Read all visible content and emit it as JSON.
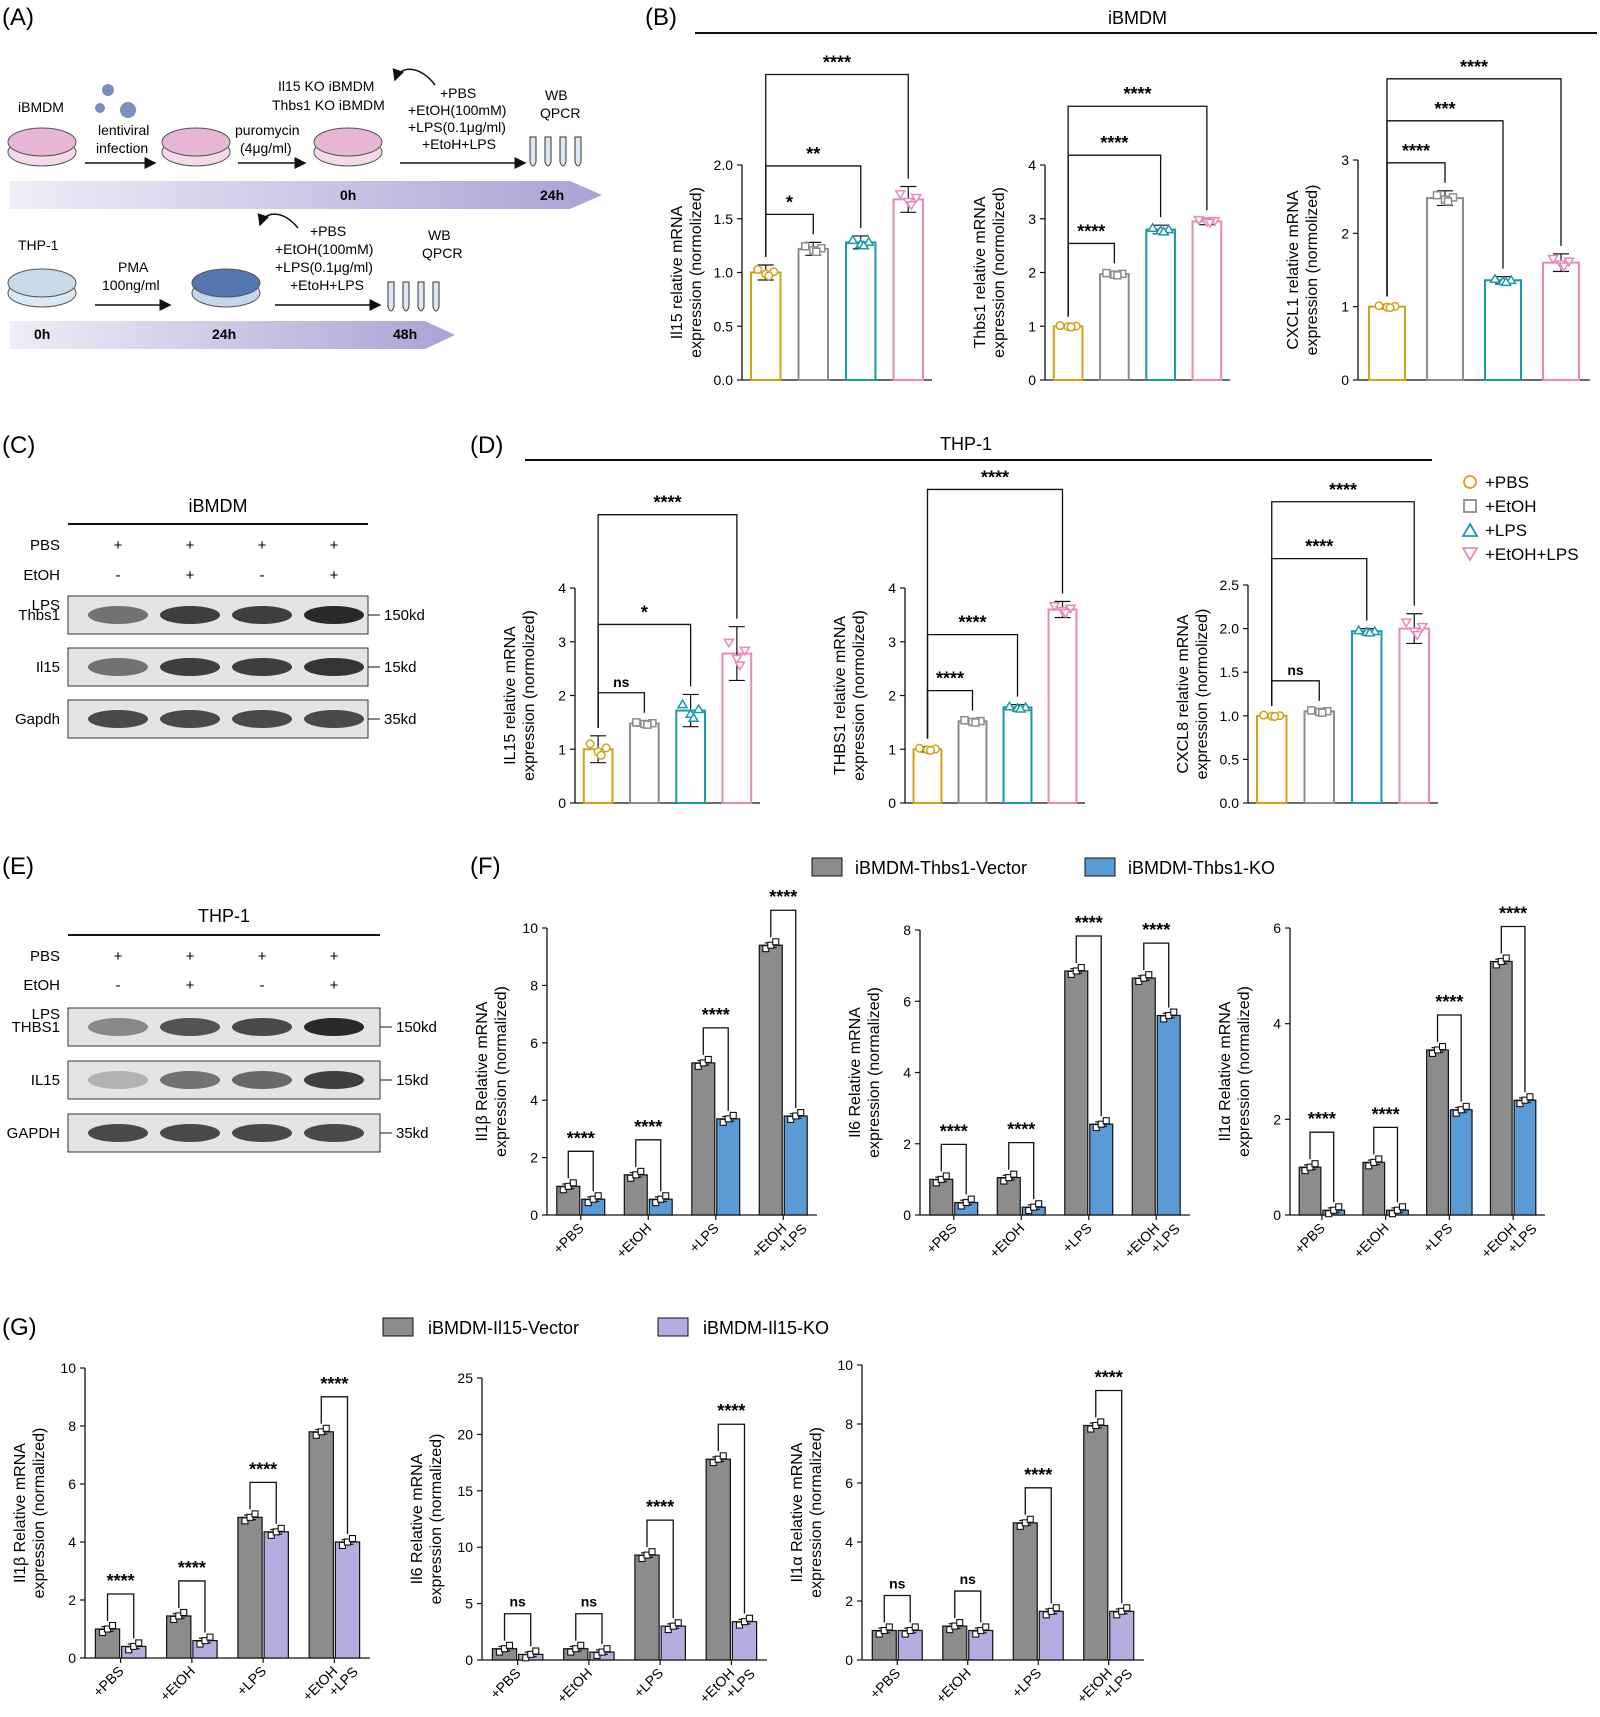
{
  "colors": {
    "pbs": "#d4a017",
    "etoh": "#8c8c8c",
    "lps": "#1a9aa6",
    "etohlps": "#e889b8",
    "vector": "#8c8c8c",
    "thbs1ko": "#5b9bd5",
    "il15ko": "#b4aee0",
    "arrow": "#b8b3d9"
  },
  "panels": {
    "A": "(A)",
    "B": "(B)",
    "C": "(C)",
    "D": "(D)",
    "E": "(E)",
    "F": "(F)",
    "G": "(G)"
  },
  "schematic": {
    "cell_ibmdm": "iBMDM",
    "lentiviral": "lentiviral",
    "infection": "infection",
    "ko_line1": "Il15 KO iBMDM",
    "ko_line2": "Thbs1 KO iBMDM",
    "puro1": "puromycin",
    "puro2": "(4μg/ml)",
    "treat1": [
      "+PBS",
      "+EtOH(100mM)",
      "+LPS(0.1μg/ml)",
      "+EtoH+LPS"
    ],
    "wb": "WB",
    "qpcr": "QPCR",
    "t0": "0h",
    "t24": "24h",
    "cell_thp1": "THP-1",
    "pma1": "PMA",
    "pma2": "100ng/ml",
    "treat2": [
      "+PBS",
      "+EtOH(100mM)",
      "+LPS(0.1μg/ml)",
      "+EtoH+LPS"
    ],
    "wb2": "WB",
    "qpcr2": "QPCR",
    "t0b": "0h",
    "t24b": "24h",
    "t48": "48h"
  },
  "headers": {
    "B": "iBMDM",
    "D": "THP-1"
  },
  "legend_D": [
    "+PBS",
    "+EtOH",
    "+LPS",
    "+EtOH+LPS"
  ],
  "legend_F": [
    "iBMDM-Thbs1-Vector",
    "iBMDM-Thbs1-KO"
  ],
  "legend_G": [
    "iBMDM-Il15-Vector",
    "iBMDM-Il15-KO"
  ],
  "blot_C": {
    "title": "iBMDM",
    "rows": [
      {
        "label": "PBS",
        "marks": [
          "+",
          "+",
          "+",
          "+"
        ]
      },
      {
        "label": "EtOH",
        "marks": [
          "-",
          "+",
          "-",
          "+"
        ]
      },
      {
        "label": "LPS",
        "marks": [
          "-",
          "-",
          "+",
          "+"
        ]
      }
    ],
    "bands": [
      {
        "label": "Thbs1",
        "size": "150kd",
        "intensity": [
          0.55,
          0.8,
          0.8,
          0.9
        ]
      },
      {
        "label": "Il15",
        "size": "15kd",
        "intensity": [
          0.55,
          0.8,
          0.8,
          0.85
        ]
      },
      {
        "label": "Gapdh",
        "size": "35kd",
        "intensity": [
          0.75,
          0.75,
          0.75,
          0.75
        ]
      }
    ]
  },
  "blot_E": {
    "title": "THP-1",
    "rows": [
      {
        "label": "PBS",
        "marks": [
          "+",
          "+",
          "+",
          "+"
        ]
      },
      {
        "label": "EtOH",
        "marks": [
          "-",
          "+",
          "-",
          "+"
        ]
      },
      {
        "label": "LPS",
        "marks": [
          "-",
          "-",
          "+",
          "+"
        ]
      }
    ],
    "bands": [
      {
        "label": "THBS1",
        "size": "150kd",
        "intensity": [
          0.45,
          0.7,
          0.75,
          0.9
        ]
      },
      {
        "label": "IL15",
        "size": "15kd",
        "intensity": [
          0.25,
          0.55,
          0.6,
          0.8
        ]
      },
      {
        "label": "GAPDH",
        "size": "35kd",
        "intensity": [
          0.75,
          0.75,
          0.75,
          0.75
        ]
      }
    ]
  },
  "chart_data": [
    {
      "id": "B1",
      "type": "bar",
      "ylabel": [
        "Il15 relative mRNA",
        "expression (normolized)"
      ],
      "ylim": [
        0,
        2.0
      ],
      "yticks": [
        "0.0",
        "0.5",
        "1.0",
        "1.5",
        "2.0"
      ],
      "values": [
        1.0,
        1.22,
        1.28,
        1.68
      ],
      "err": [
        0.07,
        0.06,
        0.06,
        0.12
      ],
      "sig": [
        {
          "i": 1,
          "t": "*"
        },
        {
          "i": 2,
          "t": "**"
        },
        {
          "i": 3,
          "t": "****"
        }
      ]
    },
    {
      "id": "B2",
      "type": "bar",
      "ylabel": [
        "Thbs1 relative mRNA",
        "expression (normolized)"
      ],
      "ylim": [
        0,
        4
      ],
      "yticks": [
        "0",
        "1",
        "2",
        "3",
        "4"
      ],
      "values": [
        1.0,
        1.97,
        2.8,
        2.95
      ],
      "err": [
        0.03,
        0.05,
        0.08,
        0.06
      ],
      "sig": [
        {
          "i": 1,
          "t": "****"
        },
        {
          "i": 2,
          "t": "****"
        },
        {
          "i": 3,
          "t": "****"
        }
      ]
    },
    {
      "id": "B3",
      "type": "bar",
      "ylabel": [
        "CXCL1 relative mRNA",
        "expression (normolized)"
      ],
      "ylim": [
        0,
        3
      ],
      "yticks": [
        "0",
        "1",
        "2",
        "3"
      ],
      "values": [
        1.0,
        2.48,
        1.36,
        1.6
      ],
      "err": [
        0.03,
        0.1,
        0.05,
        0.12
      ],
      "sig": [
        {
          "i": 1,
          "t": "****"
        },
        {
          "i": 2,
          "t": "***"
        },
        {
          "i": 3,
          "t": "****"
        }
      ]
    },
    {
      "id": "D1",
      "type": "bar",
      "ylabel": [
        "IL15 relative mRNA",
        "expression (normolized)"
      ],
      "ylim": [
        0,
        4
      ],
      "yticks": [
        "0",
        "1",
        "2",
        "3",
        "4"
      ],
      "values": [
        1.0,
        1.48,
        1.72,
        2.78
      ],
      "err": [
        0.25,
        0.05,
        0.3,
        0.5
      ],
      "sig": [
        {
          "i": 1,
          "t": "ns"
        },
        {
          "i": 2,
          "t": "*"
        },
        {
          "i": 3,
          "t": "****"
        }
      ]
    },
    {
      "id": "D2",
      "type": "bar",
      "ylabel": [
        "THBS1 relative mRNA",
        "expression (normolized)"
      ],
      "ylim": [
        0,
        4
      ],
      "yticks": [
        "0",
        "1",
        "2",
        "3",
        "4"
      ],
      "values": [
        1.0,
        1.52,
        1.78,
        3.6
      ],
      "err": [
        0.05,
        0.05,
        0.05,
        0.15
      ],
      "sig": [
        {
          "i": 1,
          "t": "****"
        },
        {
          "i": 2,
          "t": "****"
        },
        {
          "i": 3,
          "t": "****"
        }
      ]
    },
    {
      "id": "D3",
      "type": "bar",
      "ylabel": [
        "CXCL8 relative mRNA",
        "expression (normolized)"
      ],
      "ylim": [
        0,
        2.5
      ],
      "yticks": [
        "0.0",
        "0.5",
        "1.0",
        "1.5",
        "2.0",
        "2.5"
      ],
      "values": [
        1.0,
        1.05,
        1.97,
        2.0
      ],
      "err": [
        0.02,
        0.03,
        0.03,
        0.17
      ],
      "sig": [
        {
          "i": 1,
          "t": "ns"
        },
        {
          "i": 2,
          "t": "****"
        },
        {
          "i": 3,
          "t": "****"
        }
      ]
    },
    {
      "id": "F1",
      "type": "bar",
      "ylabel": [
        "Il1β Relative mRNA",
        "expression (normalized)"
      ],
      "ylim": [
        0,
        10
      ],
      "yticks": [
        "0",
        "2",
        "4",
        "6",
        "8",
        "10"
      ],
      "categories": [
        "+PBS",
        "+EtOH",
        "+LPS",
        "+EtOH\n+LPS"
      ],
      "series": [
        {
          "name": "iBMDM-Thbs1-Vector",
          "values": [
            1.0,
            1.4,
            5.3,
            9.4
          ]
        },
        {
          "name": "iBMDM-Thbs1-KO",
          "values": [
            0.55,
            0.55,
            3.35,
            3.45
          ]
        }
      ],
      "sig": [
        "****",
        "****",
        "****",
        "****"
      ]
    },
    {
      "id": "F2",
      "type": "bar",
      "ylabel": [
        "Il6 Relative mRNA",
        "expression (normalized)"
      ],
      "ylim": [
        0,
        8
      ],
      "yticks": [
        "0",
        "2",
        "4",
        "6",
        "8"
      ],
      "categories": [
        "+PBS",
        "+EtOH",
        "+LPS",
        "+EtOH\n+LPS"
      ],
      "series": [
        {
          "name": "iBMDM-Thbs1-Vector",
          "values": [
            1.0,
            1.05,
            6.85,
            6.65
          ]
        },
        {
          "name": "iBMDM-Thbs1-KO",
          "values": [
            0.35,
            0.22,
            2.55,
            5.6
          ]
        }
      ],
      "sig": [
        "****",
        "****",
        "****",
        "****"
      ]
    },
    {
      "id": "F3",
      "type": "bar",
      "ylabel": [
        "Il1α Relative mRNA",
        "expression (normalized)"
      ],
      "ylim": [
        0,
        6
      ],
      "yticks": [
        "0",
        "2",
        "4",
        "6"
      ],
      "categories": [
        "+PBS",
        "+EtOH",
        "+LPS",
        "+EtOH\n+LPS"
      ],
      "series": [
        {
          "name": "iBMDM-Thbs1-Vector",
          "values": [
            1.0,
            1.1,
            3.45,
            5.3
          ]
        },
        {
          "name": "iBMDM-Thbs1-KO",
          "values": [
            0.1,
            0.1,
            2.2,
            2.4
          ]
        }
      ],
      "sig": [
        "****",
        "****",
        "****",
        "****"
      ]
    },
    {
      "id": "G1",
      "type": "bar",
      "ylabel": [
        "Il1β Relative mRNA",
        "expression (normalized)"
      ],
      "ylim": [
        0,
        10
      ],
      "yticks": [
        "0",
        "2",
        "4",
        "6",
        "8",
        "10"
      ],
      "categories": [
        "+PBS",
        "+EtOH",
        "+LPS",
        "+EtOH\n+LPS"
      ],
      "series": [
        {
          "name": "iBMDM-Il15-Vector",
          "values": [
            1.0,
            1.45,
            4.85,
            7.8
          ]
        },
        {
          "name": "iBMDM-Il15-KO",
          "values": [
            0.4,
            0.6,
            4.35,
            4.0
          ]
        }
      ],
      "sig": [
        "****",
        "****",
        "****",
        "****"
      ]
    },
    {
      "id": "G2",
      "type": "bar",
      "ylabel": [
        "Il6 Relative mRNA",
        "expression (normalized)"
      ],
      "ylim": [
        0,
        25
      ],
      "yticks": [
        "0",
        "5",
        "10",
        "15",
        "20",
        "25"
      ],
      "categories": [
        "+PBS",
        "+EtOH",
        "+LPS",
        "+EtOH\n+LPS"
      ],
      "series": [
        {
          "name": "iBMDM-Il15-Vector",
          "values": [
            1.0,
            1.0,
            9.3,
            17.8
          ]
        },
        {
          "name": "iBMDM-Il15-KO",
          "values": [
            0.5,
            0.7,
            3.0,
            3.4
          ]
        }
      ],
      "sig": [
        "ns",
        "ns",
        "****",
        "****"
      ]
    },
    {
      "id": "G3",
      "type": "bar",
      "ylabel": [
        "Il1α Relative mRNA",
        "expression (normalized)"
      ],
      "ylim": [
        0,
        10
      ],
      "yticks": [
        "0",
        "2",
        "4",
        "6",
        "8",
        "10"
      ],
      "categories": [
        "+PBS",
        "+EtOH",
        "+LPS",
        "+EtOH\n+LPS"
      ],
      "series": [
        {
          "name": "iBMDM-Il15-Vector",
          "values": [
            1.0,
            1.15,
            4.65,
            7.95
          ]
        },
        {
          "name": "iBMDM-Il15-KO",
          "values": [
            1.0,
            1.0,
            1.65,
            1.65
          ]
        }
      ],
      "sig": [
        "ns",
        "ns",
        "****",
        "****"
      ]
    }
  ]
}
